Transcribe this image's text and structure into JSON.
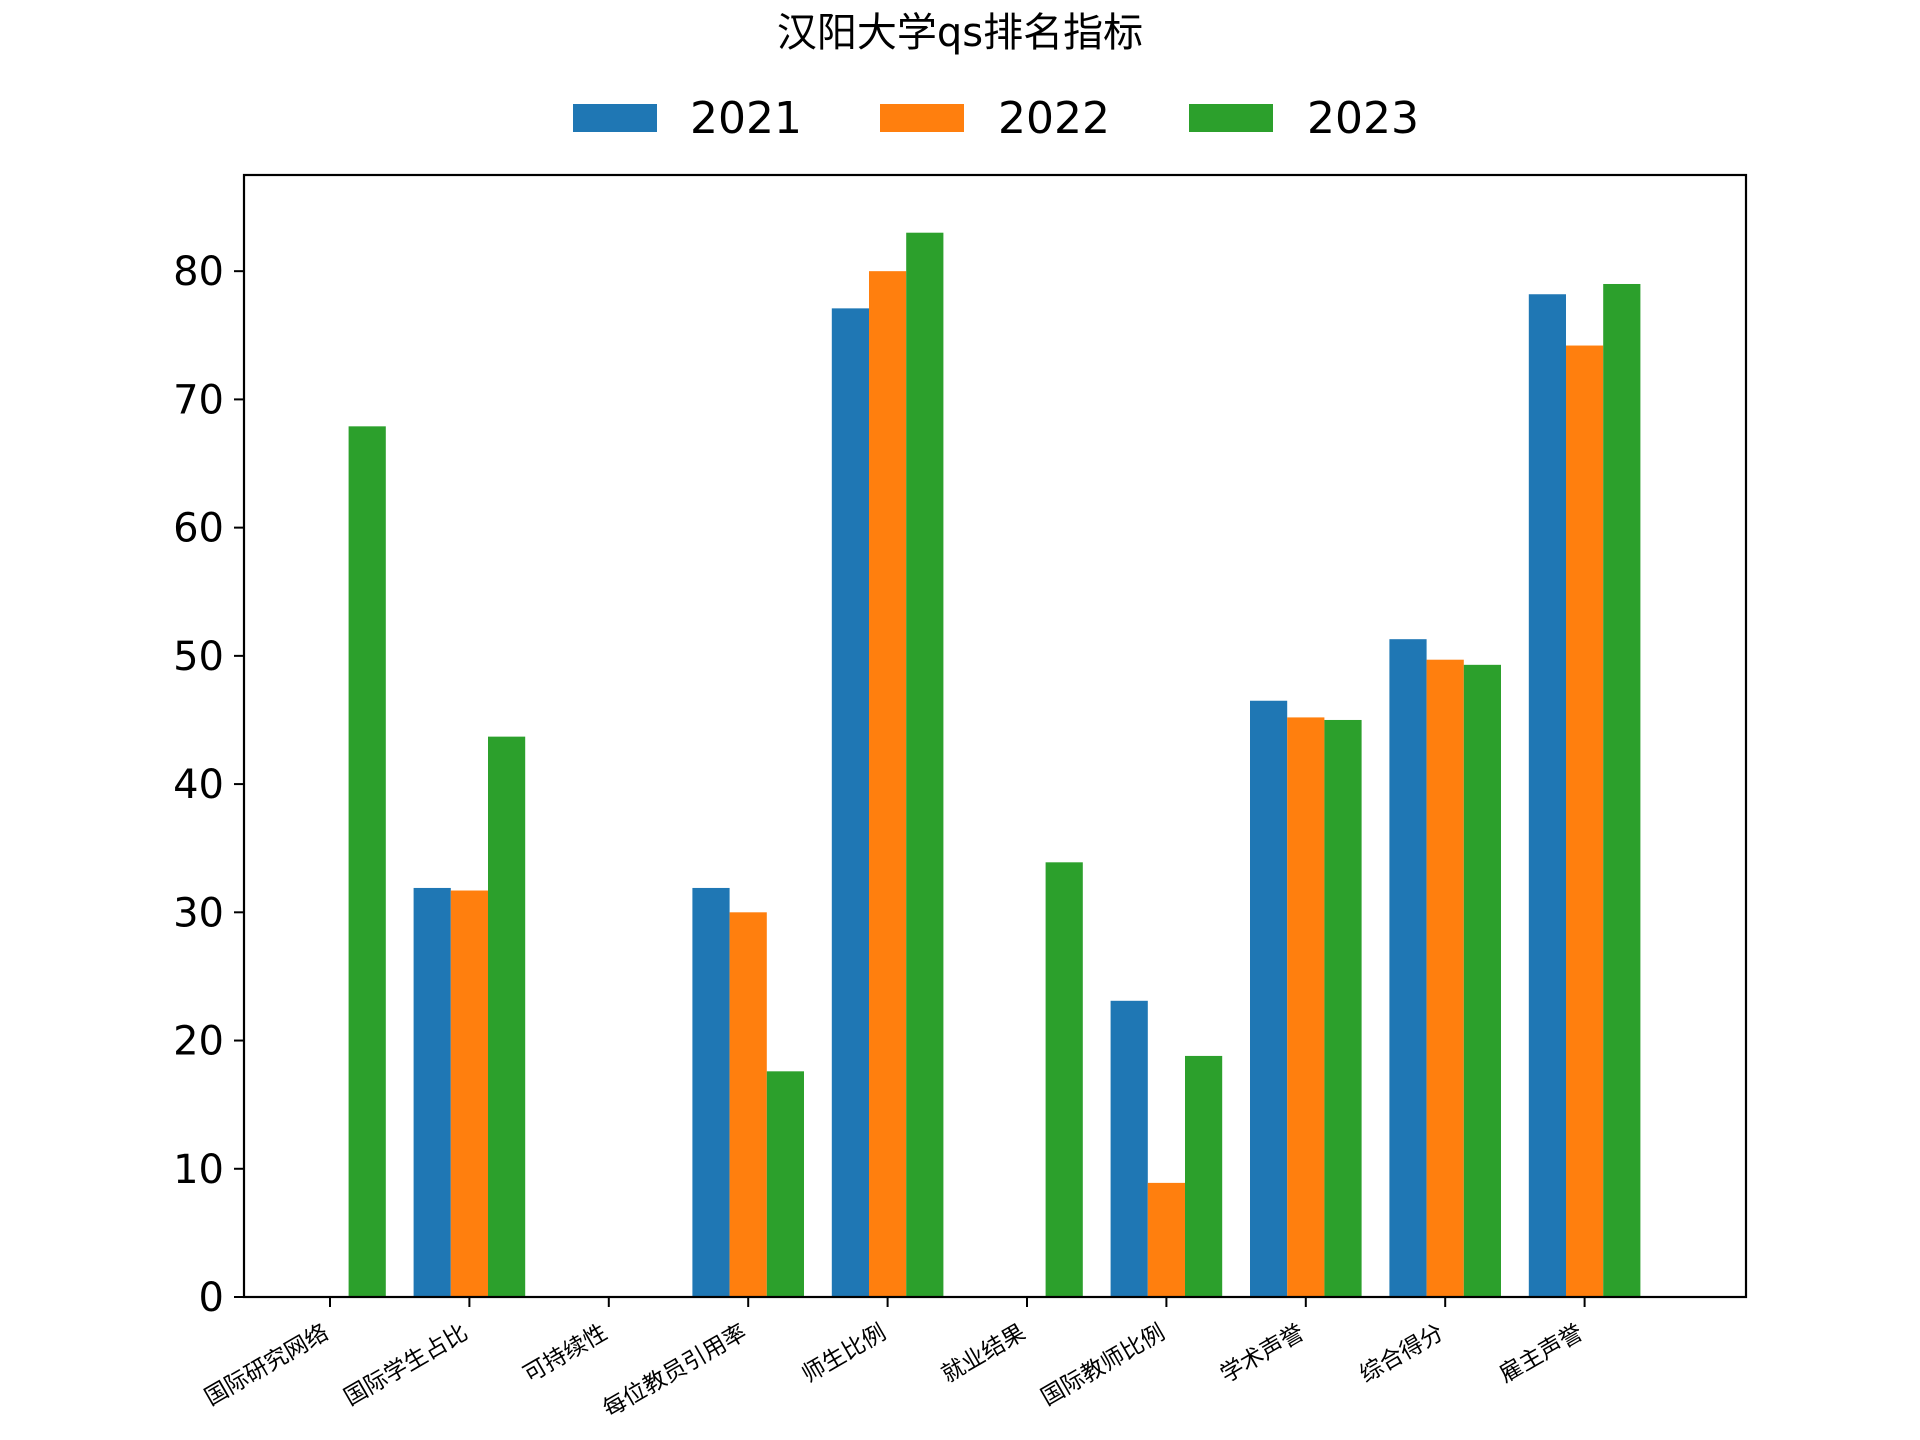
{
  "chart_data": {
    "type": "bar",
    "title": "汉阳大学qs排名指标",
    "xlabel": "",
    "ylabel": "",
    "ylim": [
      0,
      87.5
    ],
    "yticks": [
      0,
      10,
      20,
      30,
      40,
      50,
      60,
      70,
      80
    ],
    "legend_position": "top-center",
    "grid": false,
    "categories": [
      "国际研究网络",
      "国际学生占比",
      "可持续性",
      "每位教员引用率",
      "师生比例",
      "就业结果",
      "国际教师比例",
      "学术声誉",
      "综合得分",
      "雇主声誉"
    ],
    "series": [
      {
        "name": "2021",
        "color": "#1f77b4",
        "values": [
          null,
          31.9,
          null,
          31.9,
          77.1,
          null,
          23.1,
          46.5,
          51.3,
          78.2
        ]
      },
      {
        "name": "2022",
        "color": "#ff7f0e",
        "values": [
          null,
          31.7,
          null,
          30.0,
          80.0,
          null,
          8.9,
          45.2,
          49.7,
          74.2
        ]
      },
      {
        "name": "2023",
        "color": "#2ca02c",
        "values": [
          67.9,
          43.7,
          null,
          17.6,
          83.0,
          33.9,
          18.8,
          45.0,
          49.3,
          79.0
        ]
      }
    ]
  }
}
